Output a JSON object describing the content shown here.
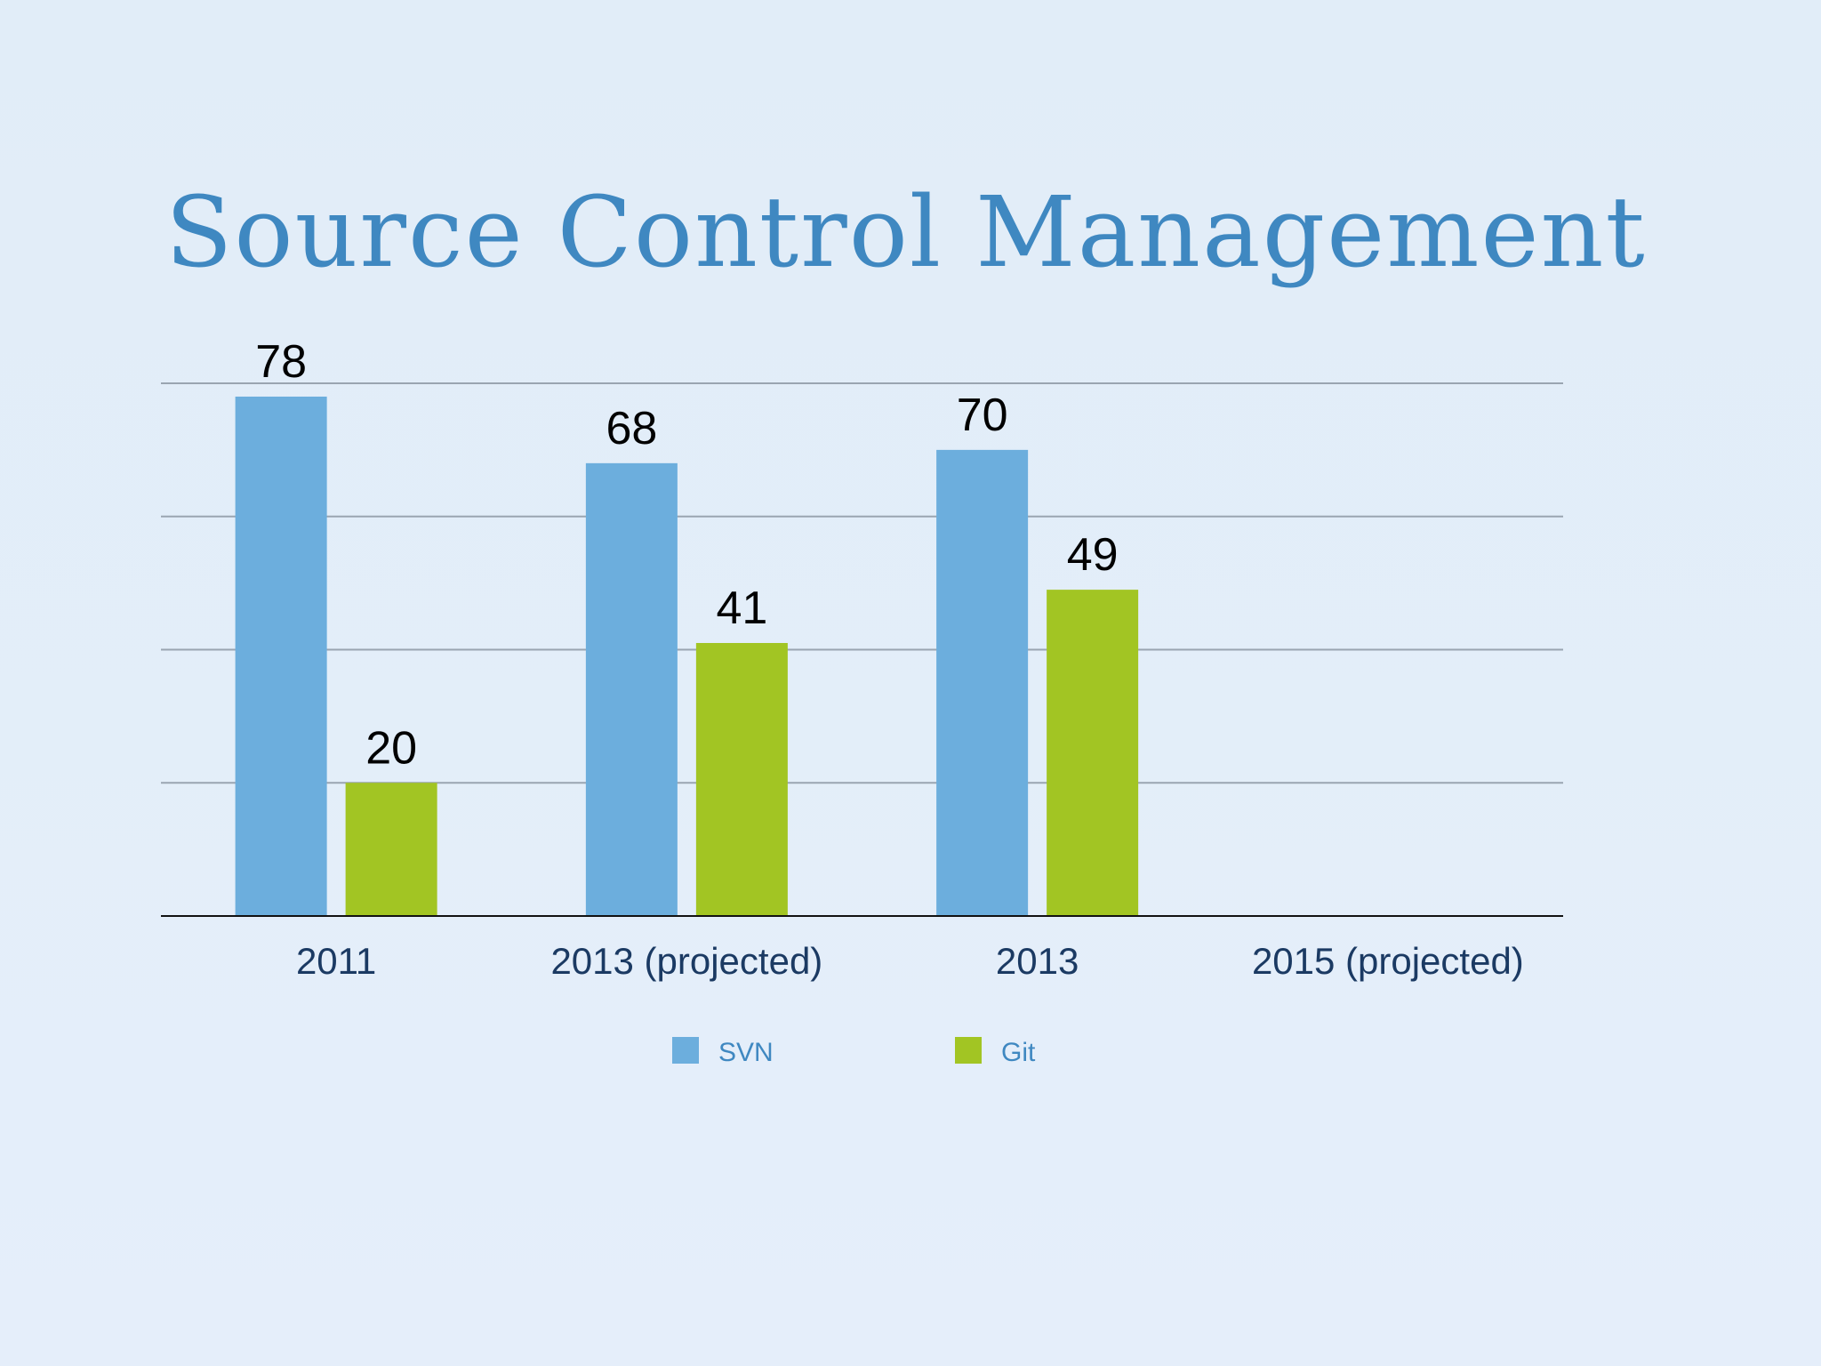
{
  "slide": {
    "title": "Source Control Management"
  },
  "chart_data": {
    "type": "bar",
    "categories": [
      "2011",
      "2013 (projected)",
      "2013",
      "2015 (projected)"
    ],
    "series": [
      {
        "name": "SVN",
        "color": "#6caedd",
        "values": [
          78,
          68,
          70,
          null
        ]
      },
      {
        "name": "Git",
        "color": "#a2c523",
        "values": [
          20,
          41,
          49,
          null
        ]
      }
    ],
    "ylim": [
      0,
      80
    ],
    "gridlines": [
      20,
      40,
      60,
      80
    ],
    "grid": true,
    "data_labels": true,
    "legend_position": "bottom",
    "title": "",
    "xlabel": "",
    "ylabel": ""
  }
}
